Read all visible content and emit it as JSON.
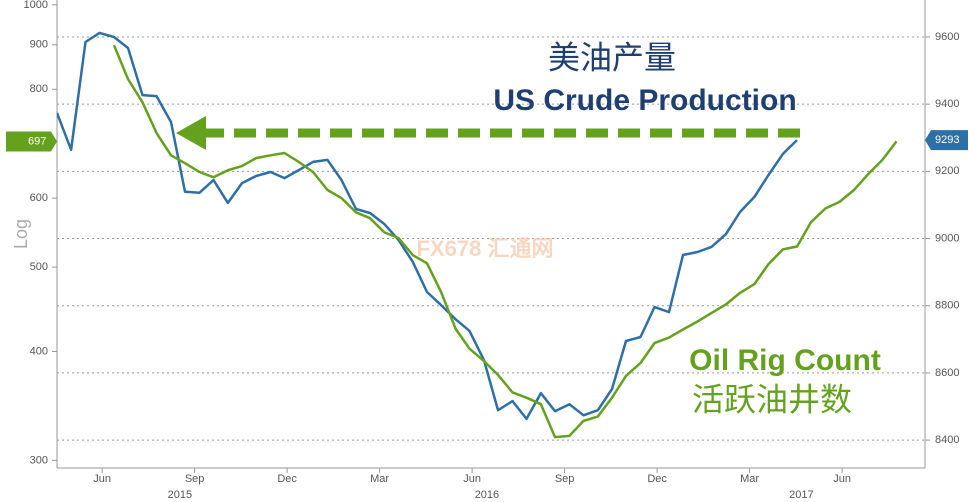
{
  "chart_data": {
    "type": "line",
    "ylabel": "Log",
    "y_scale": "log",
    "grid": true,
    "watermark": "FX678 汇通网",
    "xlim": [
      2015.298,
      2017.644
    ],
    "ylim": [
      294,
      1013
    ],
    "y2lim": [
      8317,
      9710
    ],
    "xticks": [
      {
        "value": 2015.42,
        "label": "Jun"
      },
      {
        "value": 2015.67,
        "label": "Sep"
      },
      {
        "value": 2015.92,
        "label": "Dec"
      },
      {
        "value": 2016.17,
        "label": "Mar"
      },
      {
        "value": 2016.42,
        "label": "Jun"
      },
      {
        "value": 2016.67,
        "label": "Sep"
      },
      {
        "value": 2016.92,
        "label": "Dec"
      },
      {
        "value": 2017.17,
        "label": "Mar"
      },
      {
        "value": 2017.42,
        "label": "Jun"
      }
    ],
    "x_year_ticks": [
      {
        "value": 2015.63,
        "label": "2015"
      },
      {
        "value": 2016.46,
        "label": "2016"
      },
      {
        "value": 2017.31,
        "label": "2017"
      }
    ],
    "yticks": [
      300,
      400,
      500,
      600,
      800,
      900,
      1000
    ],
    "y2ticks": [
      8400,
      8600,
      8800,
      9000,
      9200,
      9400,
      9600
    ],
    "x": [
      2015.298,
      2015.336,
      2015.375,
      2015.413,
      2015.452,
      2015.49,
      2015.529,
      2015.567,
      2015.606,
      2015.644,
      2015.683,
      2015.721,
      2015.76,
      2015.798,
      2015.836,
      2015.875,
      2015.913,
      2015.952,
      2015.99,
      2016.029,
      2016.067,
      2016.106,
      2016.144,
      2016.183,
      2016.221,
      2016.26,
      2016.298,
      2016.336,
      2016.375,
      2016.413,
      2016.452,
      2016.49,
      2016.529,
      2016.567,
      2016.606,
      2016.644,
      2016.683,
      2016.721,
      2016.76,
      2016.798,
      2016.836,
      2016.875,
      2016.913,
      2016.952,
      2016.99,
      2017.029,
      2017.067,
      2017.106,
      2017.144,
      2017.183,
      2017.221,
      2017.26,
      2017.298,
      2017.336,
      2017.375,
      2017.413,
      2017.452,
      2017.49,
      2017.529,
      2017.567
    ],
    "series": [
      {
        "name": "US Crude Production",
        "name_zh": "美油产量",
        "color": "#2e6fa6",
        "axis": "y2",
        "values": [
          9374,
          9264,
          9585,
          9612,
          9600,
          9567,
          9427,
          9424,
          9347,
          9139,
          9136,
          9174,
          9106,
          9165,
          9186,
          9198,
          9180,
          9204,
          9228,
          9234,
          9174,
          9088,
          9076,
          9043,
          8996,
          8930,
          8841,
          8802,
          8760,
          8725,
          8638,
          8489,
          8516,
          8463,
          8540,
          8486,
          8507,
          8474,
          8489,
          8552,
          8695,
          8707,
          8796,
          8781,
          8951,
          8960,
          8975,
          9013,
          9079,
          9124,
          9189,
          9252,
          9293,
          null,
          null,
          null,
          null,
          null,
          null,
          null
        ]
      },
      {
        "name": "Oil Rig Count",
        "name_zh": "活跃油井数",
        "color": "#64a11e",
        "values": [
          null,
          null,
          null,
          null,
          899,
          822,
          773,
          713,
          672,
          658,
          643,
          634,
          646,
          653,
          667,
          672,
          676,
          660,
          643,
          613,
          600,
          578,
          569,
          548,
          540,
          516,
          505,
          468,
          425,
          403,
          390,
          376,
          359,
          354,
          348,
          319,
          320,
          333,
          337,
          354,
          375,
          388,
          409,
          415,
          424,
          433,
          443,
          453,
          467,
          478,
          504,
          524,
          528,
          563,
          584,
          594,
          613,
          639,
          664,
          697
        ]
      }
    ]
  }
}
